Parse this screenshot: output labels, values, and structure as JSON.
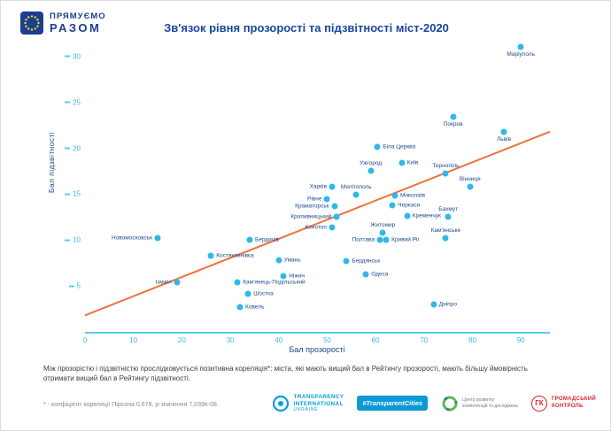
{
  "header": {
    "brand_line1": "ПРЯМУЄМО",
    "brand_line2": "РАЗОМ"
  },
  "chart_data": {
    "type": "scatter",
    "title": "Зв'язок рівня прозорості та підзвітності міст-2020",
    "xlabel": "Бал прозорості",
    "ylabel": "Бал підзвітності",
    "xlim": [
      0,
      96
    ],
    "ylim": [
      0,
      32
    ],
    "x_ticks": [
      0,
      10,
      20,
      30,
      40,
      50,
      60,
      70,
      80,
      90
    ],
    "y_ticks": [
      5,
      10,
      15,
      20,
      25,
      30
    ],
    "grid": false,
    "point_color": "#2fb8e8",
    "trend_color": "#f0703c",
    "axis_color": "#56cdf0",
    "label_color": "#1c4a8c",
    "trendline": {
      "x1": 0,
      "y1": 1.8,
      "x2": 96,
      "y2": 21.8
    },
    "points": [
      {
        "name": "Маріуполь",
        "x": 90,
        "y": 31,
        "label_pos": "below"
      },
      {
        "name": "Покров",
        "x": 76,
        "y": 23.4,
        "label_pos": "below"
      },
      {
        "name": "Львів",
        "x": 86.5,
        "y": 21.8,
        "label_pos": "below"
      },
      {
        "name": "Біла Церква",
        "x": 60.4,
        "y": 20.1,
        "label_pos": "right"
      },
      {
        "name": "Київ",
        "x": 65.4,
        "y": 18.4,
        "label_pos": "right"
      },
      {
        "name": "Ужгород",
        "x": 59,
        "y": 17.5,
        "label_pos": "above"
      },
      {
        "name": "Тернопіль",
        "x": 74.5,
        "y": 17.3,
        "label_pos": "above"
      },
      {
        "name": "Вінниця",
        "x": 79.5,
        "y": 15.8,
        "label_pos": "above"
      },
      {
        "name": "Харків",
        "x": 51,
        "y": 15.8,
        "label_pos": "left"
      },
      {
        "name": "Мелітополь",
        "x": 56,
        "y": 14.9,
        "label_pos": "above"
      },
      {
        "name": "Миколаїв",
        "x": 64,
        "y": 14.8,
        "label_pos": "right"
      },
      {
        "name": "Рівне",
        "x": 50,
        "y": 14.5,
        "label_pos": "left"
      },
      {
        "name": "Черкаси",
        "x": 63.5,
        "y": 13.8,
        "label_pos": "right"
      },
      {
        "name": "Краматорськ",
        "x": 51.5,
        "y": 13.7,
        "label_pos": "left"
      },
      {
        "name": "Кременчук",
        "x": 66.5,
        "y": 12.6,
        "label_pos": "right"
      },
      {
        "name": "Бахмут",
        "x": 75,
        "y": 12.5,
        "label_pos": "above"
      },
      {
        "name": "Кропивницький",
        "x": 52,
        "y": 12.5,
        "label_pos": "left"
      },
      {
        "name": "Конотоп",
        "x": 51,
        "y": 11.4,
        "label_pos": "left"
      },
      {
        "name": "Житомир",
        "x": 61.5,
        "y": 10.8,
        "label_pos": "above"
      },
      {
        "name": "Кам'янське",
        "x": 74.5,
        "y": 10.2,
        "label_pos": "above"
      },
      {
        "name": "Новомосковськ",
        "x": 15,
        "y": 10.2,
        "label_pos": "left"
      },
      {
        "name": "Бердичів",
        "x": 34,
        "y": 10,
        "label_pos": "right"
      },
      {
        "name": "Полтава",
        "x": 60.9,
        "y": 10,
        "label_pos": "left"
      },
      {
        "name": "Кривий Ріг",
        "x": 62.2,
        "y": 10,
        "label_pos": "right"
      },
      {
        "name": "Костянтинівка",
        "x": 26,
        "y": 8.3,
        "label_pos": "right"
      },
      {
        "name": "Умань",
        "x": 40,
        "y": 7.8,
        "label_pos": "right"
      },
      {
        "name": "Бердянськ",
        "x": 54,
        "y": 7.7,
        "label_pos": "right"
      },
      {
        "name": "Одеса",
        "x": 58,
        "y": 6.3,
        "label_pos": "right"
      },
      {
        "name": "Ніжин",
        "x": 41,
        "y": 6.1,
        "label_pos": "right"
      },
      {
        "name": "Ізмаїл",
        "x": 19,
        "y": 5.4,
        "label_pos": "left"
      },
      {
        "name": "Кам'янець-Подільський",
        "x": 31.5,
        "y": 5.4,
        "label_pos": "right"
      },
      {
        "name": "Шостка",
        "x": 33.7,
        "y": 4.1,
        "label_pos": "right"
      },
      {
        "name": "Ковель",
        "x": 32,
        "y": 2.7,
        "label_pos": "right"
      },
      {
        "name": "Дніпро",
        "x": 72,
        "y": 3,
        "label_pos": "right"
      }
    ]
  },
  "footer": {
    "note": "Між прозорістю і підзвітністю прослідковується позитивна кореляція*: міста, які мають вищий бал в Рейтингу прозорості, мають більшу ймовірність отримати вищий бал в Рейтингу підзвітності.",
    "footnote": "* - коефіцієнт кореляції Пірсона 0,678, p-значення 7,039e-08.",
    "logos": {
      "ti_line1": "TRANSPARENCY",
      "ti_line2": "INTERNATIONAL",
      "ti_line3": "UKRAINE",
      "hashtag": "#TransparentCities",
      "center_line1": "Центр розвитку",
      "center_line2": "компетенцій та досліджень",
      "gk_abbr": "ГК",
      "gk_line1": "ГРОМАДСЬКИЙ",
      "gk_line2": "КОНТРОЛЬ"
    }
  }
}
